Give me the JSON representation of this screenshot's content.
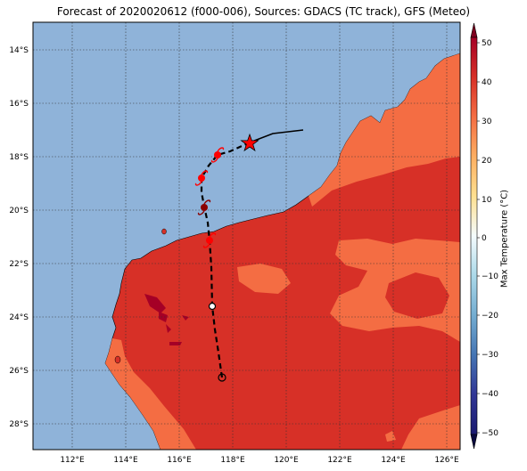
{
  "title": "Forecast of 2020020612 (f000-006), Sources: GDACS (TC track), GFS (Meteo)",
  "lat_ticks": [
    "14°S",
    "16°S",
    "18°S",
    "20°S",
    "22°S",
    "24°S",
    "26°S",
    "28°S"
  ],
  "lon_ticks": [
    "112°E",
    "114°E",
    "116°E",
    "118°E",
    "120°E",
    "122°E",
    "124°E",
    "126°E"
  ],
  "colorbar": {
    "label": "Max Temperature (°C)",
    "ticks": [
      "50",
      "40",
      "30",
      "20",
      "10",
      "0",
      "−10",
      "−20",
      "−30",
      "−40",
      "−50"
    ]
  },
  "colors": {
    "ocean": "#8fb3d9",
    "land_hot": "#d73027",
    "land_warm": "#f46d43",
    "land_hottest": "#a50026",
    "track": "#000000",
    "storm_marker": "#ff0000"
  },
  "icons": {
    "current_position": "star-icon",
    "forecast_position": "cyclone-icon"
  }
}
